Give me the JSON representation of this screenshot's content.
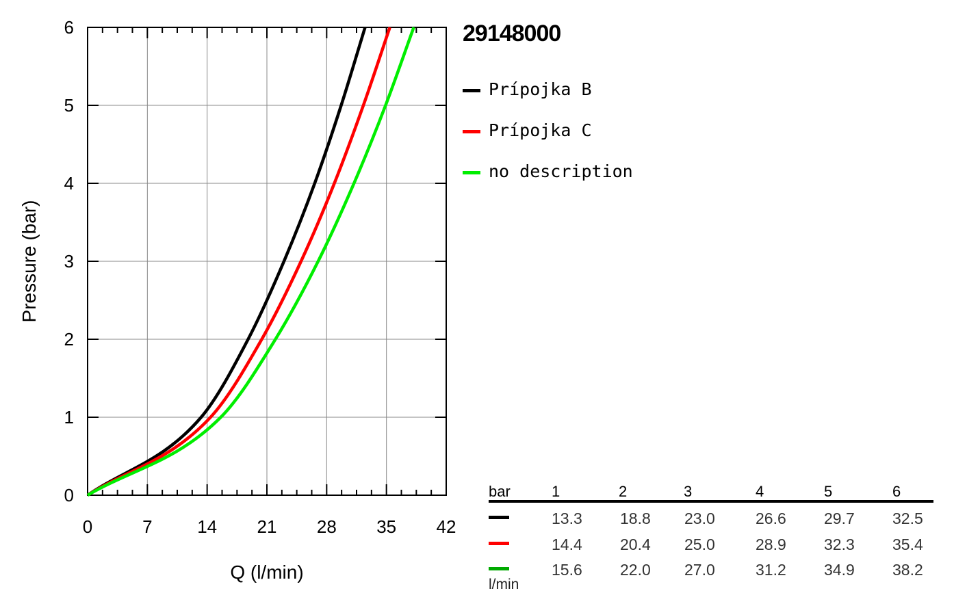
{
  "model_title": "29148000",
  "legend": [
    {
      "label": "Prípojka B",
      "color": "#000000"
    },
    {
      "label": "Prípojka C",
      "color": "#ff0000"
    },
    {
      "label": "no description",
      "color": "#00ee00"
    }
  ],
  "chart_data": {
    "type": "line",
    "xlabel": "Q (l/min)",
    "ylabel": "Pressure (bar)",
    "xlim": [
      0,
      42
    ],
    "ylim": [
      0,
      6
    ],
    "x_ticks": [
      "0",
      "7",
      "14",
      "21",
      "28",
      "35",
      "42"
    ],
    "y_ticks": [
      "0",
      "1",
      "2",
      "3",
      "4",
      "5",
      "6"
    ],
    "grid": true,
    "legend_position": "right",
    "series": [
      {
        "name": "Prípojka B",
        "color": "#000000",
        "x": [
          0,
          13.3,
          18.8,
          23.0,
          26.6,
          29.7,
          32.5
        ],
        "y": [
          0,
          1,
          2,
          3,
          4,
          5,
          6
        ]
      },
      {
        "name": "Prípojka C",
        "color": "#ff0000",
        "x": [
          0,
          14.4,
          20.4,
          25.0,
          28.9,
          32.3,
          35.4
        ],
        "y": [
          0,
          1,
          2,
          3,
          4,
          5,
          6
        ]
      },
      {
        "name": "no description",
        "color": "#00ee00",
        "x": [
          0,
          15.6,
          22.0,
          27.0,
          31.2,
          34.9,
          38.2
        ],
        "y": [
          0,
          1,
          2,
          3,
          4,
          5,
          6
        ]
      }
    ]
  },
  "table": {
    "header_unit": "bar",
    "footer_unit": "l/min",
    "columns": [
      "1",
      "2",
      "3",
      "4",
      "5",
      "6"
    ],
    "rows": [
      {
        "color": "#000000",
        "values": [
          "13.3",
          "18.8",
          "23.0",
          "26.6",
          "29.7",
          "32.5"
        ]
      },
      {
        "color": "#ff0000",
        "values": [
          "14.4",
          "20.4",
          "25.0",
          "28.9",
          "32.3",
          "35.4"
        ]
      },
      {
        "color": "#00aa00",
        "values": [
          "15.6",
          "22.0",
          "27.0",
          "31.2",
          "34.9",
          "38.2"
        ]
      }
    ]
  }
}
